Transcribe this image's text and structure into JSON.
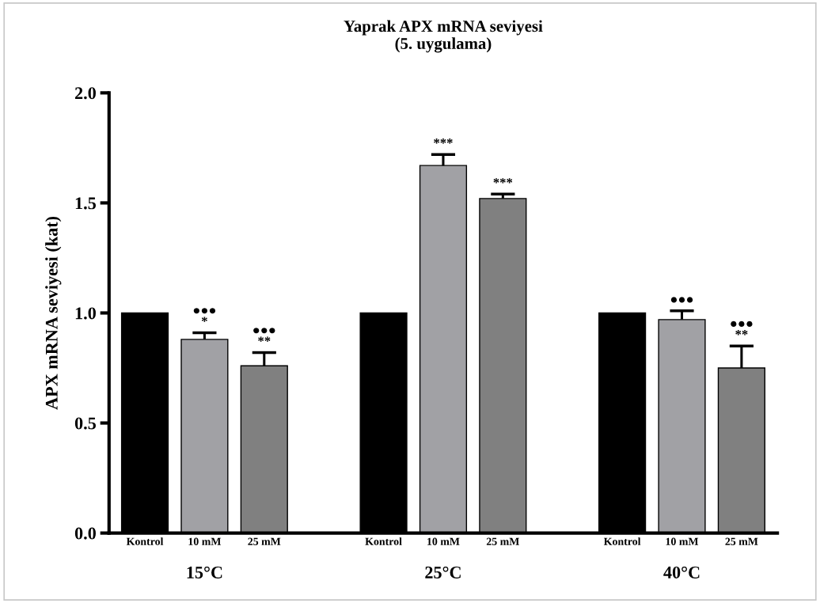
{
  "chart_data": {
    "type": "bar",
    "title": "Yaprak APX mRNA seviyesi\n(5. uygulama)",
    "ylabel": "APX mRNA seviyesi (kat)",
    "categories": [
      "Kontrol",
      "10 mM",
      "25 mM",
      null,
      "Kontrol",
      "10 mM",
      "25 mM",
      null,
      "Kontrol",
      "10 mM",
      "25 mM"
    ],
    "values": [
      1.0,
      0.88,
      0.76,
      null,
      1.0,
      1.67,
      1.52,
      null,
      1.0,
      0.97,
      0.75
    ],
    "colors": [
      "#000000",
      "#a1a1a5",
      "#808080",
      null,
      "#000000",
      "#a1a1a5",
      "#808080",
      null,
      "#000000",
      "#a1a1a5",
      "#808080"
    ],
    "errors": [
      null,
      [
        0.88,
        0.91
      ],
      [
        0.76,
        0.82
      ],
      null,
      null,
      [
        1.67,
        1.72
      ],
      [
        1.52,
        1.54
      ],
      null,
      null,
      [
        0.97,
        1.01
      ],
      [
        0.75,
        0.85
      ]
    ],
    "value_labels": [
      null,
      "●●●\n*",
      "●●●\n**",
      null,
      null,
      "***",
      "***",
      null,
      null,
      "●●●",
      "●●●\n**"
    ],
    "annotations": [
      "15°C",
      "25°C",
      "40°C"
    ],
    "ylim": [
      0,
      2.0
    ],
    "yticks": [
      {
        "value": 0,
        "label": "0.0"
      },
      {
        "value": 0.5,
        "label": "0.5"
      },
      {
        "value": 1.0,
        "label": "1.0"
      },
      {
        "value": 1.5,
        "label": "1.5"
      },
      {
        "value": 2.0,
        "label": "2.0"
      }
    ],
    "grid": false,
    "legend": false
  }
}
